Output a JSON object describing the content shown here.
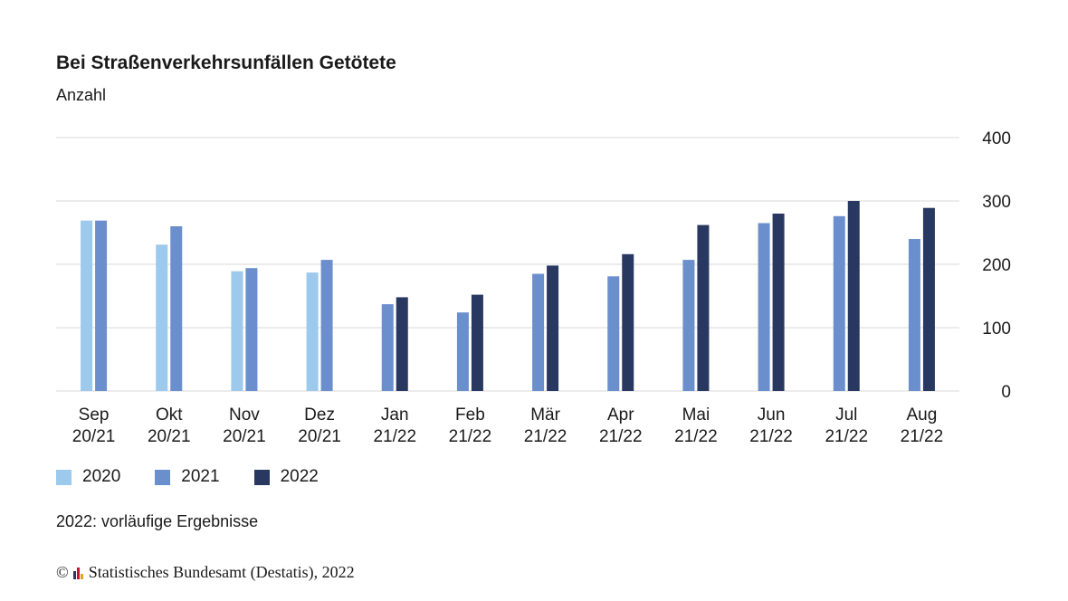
{
  "title": "Bei Straßenverkehrsunfällen Getötete",
  "subtitle": "Anzahl",
  "note": "2022: vorläufige Ergebnisse",
  "source": {
    "copyright": "©",
    "text": "Statistisches Bundesamt (Destatis), 2022"
  },
  "colors": {
    "s2020": "#9cc9ec",
    "s2021": "#6b8fcd",
    "s2022": "#283861",
    "grid": "#d9d9d9",
    "text": "#1a1a1a"
  },
  "chart_data": {
    "type": "bar",
    "categories": [
      [
        "Sep",
        "20/21"
      ],
      [
        "Okt",
        "20/21"
      ],
      [
        "Nov",
        "20/21"
      ],
      [
        "Dez",
        "20/21"
      ],
      [
        "Jan",
        "21/22"
      ],
      [
        "Feb",
        "21/22"
      ],
      [
        "Mär",
        "21/22"
      ],
      [
        "Apr",
        "21/22"
      ],
      [
        "Mai",
        "21/22"
      ],
      [
        "Jun",
        "21/22"
      ],
      [
        "Jul",
        "21/22"
      ],
      [
        "Aug",
        "21/22"
      ]
    ],
    "series": [
      {
        "name": "2020",
        "color": "#9cc9ec",
        "values": [
          269,
          231,
          189,
          187,
          null,
          null,
          null,
          null,
          null,
          null,
          null,
          null
        ]
      },
      {
        "name": "2021",
        "color": "#6b8fcd",
        "values": [
          269,
          260,
          194,
          207,
          137,
          124,
          185,
          181,
          207,
          265,
          276,
          240
        ]
      },
      {
        "name": "2022",
        "color": "#283861",
        "values": [
          null,
          null,
          null,
          null,
          148,
          152,
          198,
          216,
          262,
          280,
          300,
          289
        ]
      }
    ],
    "ylim": [
      0,
      400
    ],
    "yticks": [
      0,
      100,
      200,
      300,
      400
    ],
    "ytick_labels": [
      "0",
      "100",
      "200",
      "300",
      "400"
    ],
    "y_axis_position": "right",
    "grid": true,
    "legend_position": "bottom-left"
  }
}
